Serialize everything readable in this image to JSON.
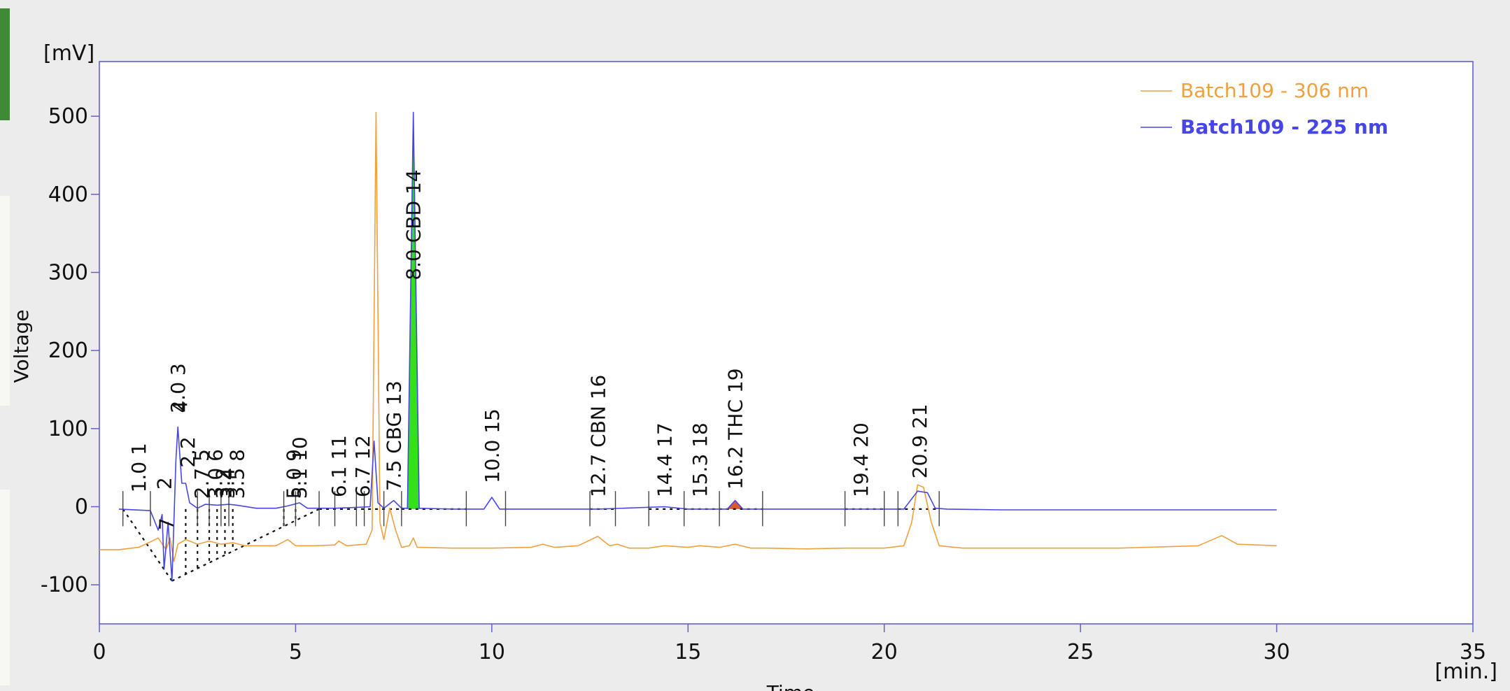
{
  "chart_data": {
    "type": "line",
    "yunit": "[mV]",
    "xunit": "[min.]",
    "ylabel": "Voltage",
    "xlabel": "Time",
    "xlim": [
      0,
      35
    ],
    "ylim": [
      -150,
      570
    ],
    "xticks": [
      "0",
      "5",
      "10",
      "15",
      "20",
      "25",
      "30",
      "35"
    ],
    "yticks": [
      "-100",
      "0",
      "100",
      "200",
      "300",
      "400",
      "500"
    ],
    "legend_position": "top-right",
    "series": [
      {
        "name": "Batch109 - 306 nm",
        "color": "#f0a03c",
        "points": [
          [
            0,
            -55
          ],
          [
            0.5,
            -55
          ],
          [
            1,
            -52
          ],
          [
            1.3,
            -45
          ],
          [
            1.5,
            -40
          ],
          [
            1.7,
            -55
          ],
          [
            1.8,
            -40
          ],
          [
            1.9,
            -70
          ],
          [
            2.0,
            -48
          ],
          [
            2.2,
            -42
          ],
          [
            2.5,
            -48
          ],
          [
            2.8,
            -44
          ],
          [
            3.1,
            -48
          ],
          [
            3.4,
            -46
          ],
          [
            3.7,
            -50
          ],
          [
            4.0,
            -50
          ],
          [
            4.5,
            -50
          ],
          [
            4.8,
            -42
          ],
          [
            5.0,
            -50
          ],
          [
            5.5,
            -50
          ],
          [
            6.0,
            -49
          ],
          [
            6.1,
            -44
          ],
          [
            6.3,
            -50
          ],
          [
            6.8,
            -48
          ],
          [
            6.95,
            -30
          ],
          [
            7.05,
            505
          ],
          [
            7.15,
            -20
          ],
          [
            7.25,
            -42
          ],
          [
            7.4,
            -2
          ],
          [
            7.55,
            -30
          ],
          [
            7.7,
            -52
          ],
          [
            7.9,
            -50
          ],
          [
            8.0,
            -40
          ],
          [
            8.1,
            -52
          ],
          [
            9.0,
            -53
          ],
          [
            10.0,
            -53
          ],
          [
            11.0,
            -52
          ],
          [
            11.3,
            -48
          ],
          [
            11.6,
            -52
          ],
          [
            12.2,
            -50
          ],
          [
            12.7,
            -38
          ],
          [
            13.0,
            -50
          ],
          [
            13.2,
            -48
          ],
          [
            13.5,
            -53
          ],
          [
            14.0,
            -53
          ],
          [
            14.4,
            -50
          ],
          [
            15.0,
            -52
          ],
          [
            15.3,
            -50
          ],
          [
            15.8,
            -52
          ],
          [
            16.2,
            -48
          ],
          [
            16.6,
            -53
          ],
          [
            17.0,
            -53
          ],
          [
            18.0,
            -54
          ],
          [
            19.0,
            -53
          ],
          [
            20.0,
            -53
          ],
          [
            20.5,
            -50
          ],
          [
            20.7,
            -20
          ],
          [
            20.85,
            28
          ],
          [
            21.0,
            25
          ],
          [
            21.2,
            -20
          ],
          [
            21.4,
            -50
          ],
          [
            22.0,
            -53
          ],
          [
            24.0,
            -53
          ],
          [
            26.0,
            -53
          ],
          [
            28.0,
            -50
          ],
          [
            28.6,
            -37
          ],
          [
            29.0,
            -48
          ],
          [
            30.0,
            -50
          ]
        ]
      },
      {
        "name": "Batch109 - 225 nm",
        "color": "#4646e6",
        "points": [
          [
            0.5,
            -3
          ],
          [
            1.3,
            -5
          ],
          [
            1.5,
            -30
          ],
          [
            1.6,
            -10
          ],
          [
            1.65,
            -80
          ],
          [
            1.75,
            -20
          ],
          [
            1.85,
            -95
          ],
          [
            1.95,
            60
          ],
          [
            2.0,
            102
          ],
          [
            2.1,
            30
          ],
          [
            2.2,
            30
          ],
          [
            2.3,
            5
          ],
          [
            2.5,
            -2
          ],
          [
            2.7,
            3
          ],
          [
            3.0,
            2
          ],
          [
            3.3,
            3
          ],
          [
            3.5,
            2
          ],
          [
            4.0,
            -2
          ],
          [
            4.5,
            -2
          ],
          [
            4.8,
            1
          ],
          [
            5.1,
            5
          ],
          [
            5.3,
            -2
          ],
          [
            6.0,
            -2
          ],
          [
            6.5,
            -1
          ],
          [
            6.9,
            0
          ],
          [
            7.0,
            84
          ],
          [
            7.1,
            5
          ],
          [
            7.25,
            -2
          ],
          [
            7.5,
            8
          ],
          [
            7.7,
            -2
          ],
          [
            7.85,
            -2
          ],
          [
            8.0,
            505
          ],
          [
            8.15,
            -2
          ],
          [
            9.0,
            -3
          ],
          [
            9.8,
            -3
          ],
          [
            10.0,
            12
          ],
          [
            10.2,
            -3
          ],
          [
            11.0,
            -3
          ],
          [
            12.7,
            -3
          ],
          [
            14.4,
            0
          ],
          [
            15.0,
            -3
          ],
          [
            16.0,
            -3
          ],
          [
            16.2,
            8
          ],
          [
            16.4,
            -3
          ],
          [
            17.0,
            -3
          ],
          [
            19.0,
            -3
          ],
          [
            20.0,
            -3
          ],
          [
            20.5,
            -3
          ],
          [
            20.85,
            20
          ],
          [
            21.1,
            18
          ],
          [
            21.3,
            -2
          ],
          [
            21.6,
            -3
          ],
          [
            23.0,
            -4
          ],
          [
            25.0,
            -4
          ],
          [
            28.0,
            -4
          ],
          [
            30.0,
            -4
          ]
        ]
      }
    ],
    "peaks": [
      {
        "label": "1.0  1",
        "x": 1.0,
        "y": 18
      },
      {
        "label": "2",
        "x": 1.65,
        "y": 22
      },
      {
        "label": "7",
        "x": 1.7,
        "y": -30
      },
      {
        "label": "2.0  3",
        "x": 2.0,
        "y": 120
      },
      {
        "label": "4",
        "x": 2.05,
        "y": 120
      },
      {
        "label": "2.2",
        "x": 2.25,
        "y": 50
      },
      {
        "label": "2.7  5",
        "x": 2.6,
        "y": 10
      },
      {
        "label": "3.0  6",
        "x": 2.95,
        "y": 10
      },
      {
        "label": "3.2",
        "x": 3.15,
        "y": 10
      },
      {
        "label": "3.4",
        "x": 3.25,
        "y": 10
      },
      {
        "label": "3.5  8",
        "x": 3.5,
        "y": 10
      },
      {
        "label": "5.0  9",
        "x": 4.95,
        "y": 10
      },
      {
        "label": "5.1 10",
        "x": 5.1,
        "y": 10
      },
      {
        "label": "6.1  11",
        "x": 6.1,
        "y": 12
      },
      {
        "label": "6.7  12",
        "x": 6.7,
        "y": 12
      },
      {
        "label": "7.5 CBG  13",
        "x": 7.5,
        "y": 20
      },
      {
        "label": "8.0 CBD  14",
        "x": 8.0,
        "y": 290
      },
      {
        "label": "10.0  15",
        "x": 10.0,
        "y": 30
      },
      {
        "label": "12.7 CBN  16",
        "x": 12.7,
        "y": 12
      },
      {
        "label": "14.4  17",
        "x": 14.4,
        "y": 12
      },
      {
        "label": "15.3  18",
        "x": 15.3,
        "y": 12
      },
      {
        "label": "16.2 THC  19",
        "x": 16.2,
        "y": 22
      },
      {
        "label": "19.4  20",
        "x": 19.4,
        "y": 12
      },
      {
        "label": "20.9  21",
        "x": 20.9,
        "y": 36
      }
    ],
    "filled_peaks": [
      {
        "x": [
          7.82,
          8.0,
          8.18
        ],
        "color": "#33e01a"
      },
      {
        "x": [
          15.98,
          16.2,
          16.42
        ],
        "color": "#e05a28"
      }
    ],
    "integration_markers": [
      0.6,
      1.3,
      2.5,
      2.8,
      3.1,
      3.3,
      4.7,
      5.0,
      5.6,
      6.0,
      6.55,
      6.75,
      7.25,
      7.7,
      9.35,
      10.35,
      12.5,
      13.15,
      14.0,
      14.9,
      15.8,
      16.9,
      19.0,
      20.0,
      20.35,
      21.4
    ]
  }
}
